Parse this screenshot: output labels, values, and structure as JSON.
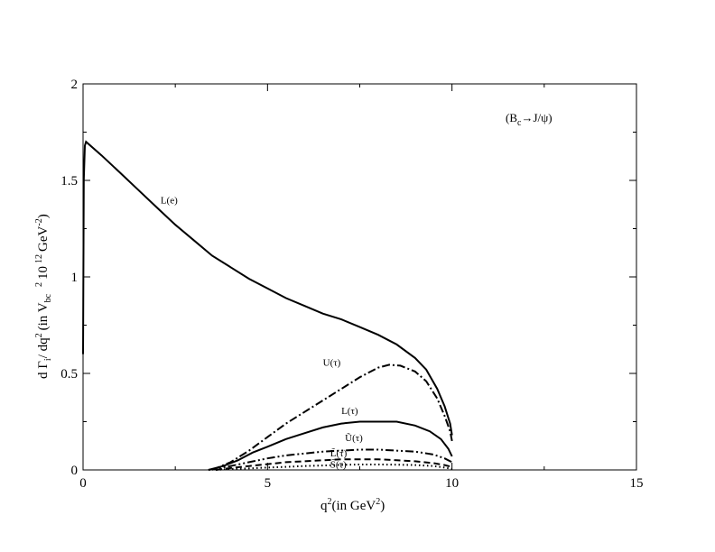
{
  "chart_data": {
    "type": "line",
    "title": "",
    "annotation": "(B_c→J/ψ)",
    "annotation_parts": {
      "pre": "(B",
      "sub": "c",
      "post": "→J/ψ)"
    },
    "xlabel_parts": {
      "a": "q",
      "sup": "2",
      "b": "(in GeV",
      "sup2": "2",
      "c": ")"
    },
    "ylabel_parts": {
      "a": "d Γ",
      "s1": "i",
      "b": "/ dq",
      "p1": "2",
      "c": "(in V",
      "s2": "bc",
      "p2": "2",
      "d": "10",
      "p3": "12",
      "e": "GeV",
      "p4": "-2",
      "f": ")"
    },
    "xlim": [
      0,
      15
    ],
    "ylim": [
      0,
      2
    ],
    "xticks": [
      0,
      5,
      10,
      15
    ],
    "yticks": [
      0,
      0.5,
      1,
      1.5,
      2
    ],
    "ytick_labels": [
      "0",
      "0.5",
      "1",
      "1.5",
      "2"
    ],
    "grid": false,
    "series": [
      {
        "name": "L(e)",
        "style": "solid",
        "label_at": [
          2.1,
          1.38
        ],
        "x": [
          0.0,
          0.02,
          0.05,
          0.08,
          0.5,
          1,
          1.5,
          2,
          2.5,
          3,
          3.5,
          4,
          4.5,
          5,
          5.5,
          6,
          6.5,
          7,
          7.5,
          8,
          8.5,
          9,
          9.3,
          9.6,
          9.8,
          9.95,
          10.0
        ],
        "y": [
          0.6,
          1.5,
          1.68,
          1.7,
          1.63,
          1.54,
          1.45,
          1.36,
          1.27,
          1.19,
          1.11,
          1.05,
          0.99,
          0.94,
          0.89,
          0.85,
          0.81,
          0.78,
          0.74,
          0.7,
          0.65,
          0.58,
          0.52,
          0.42,
          0.33,
          0.24,
          0.18
        ]
      },
      {
        "name": "U(τ)",
        "style": "dashdot",
        "label_at": [
          6.5,
          0.54
        ],
        "x": [
          3.5,
          4,
          4.5,
          5,
          5.5,
          6,
          6.5,
          7,
          7.5,
          8,
          8.3,
          8.6,
          9,
          9.3,
          9.6,
          9.8,
          9.95,
          10.0
        ],
        "y": [
          0.0,
          0.04,
          0.1,
          0.17,
          0.24,
          0.3,
          0.36,
          0.42,
          0.48,
          0.53,
          0.545,
          0.54,
          0.51,
          0.46,
          0.37,
          0.28,
          0.2,
          0.15
        ]
      },
      {
        "name": "L(τ)",
        "style": "solid",
        "label_at": [
          7.0,
          0.29
        ],
        "x": [
          3.4,
          3.8,
          4.2,
          4.6,
          5,
          5.5,
          6,
          6.5,
          7,
          7.5,
          8,
          8.5,
          9,
          9.4,
          9.7,
          9.9,
          10.0
        ],
        "y": [
          0.0,
          0.02,
          0.05,
          0.09,
          0.12,
          0.16,
          0.19,
          0.22,
          0.24,
          0.25,
          0.25,
          0.25,
          0.23,
          0.2,
          0.16,
          0.11,
          0.07
        ]
      },
      {
        "name": "Ũ(τ)",
        "style": "dashdotdot",
        "label_at": [
          7.1,
          0.15
        ],
        "x": [
          3.4,
          4,
          4.5,
          5,
          5.5,
          6,
          6.5,
          7,
          7.5,
          8,
          8.5,
          9,
          9.5,
          9.8,
          10.0
        ],
        "y": [
          0.0,
          0.02,
          0.04,
          0.06,
          0.075,
          0.085,
          0.095,
          0.1,
          0.105,
          0.105,
          0.1,
          0.095,
          0.08,
          0.06,
          0.04
        ]
      },
      {
        "name": "L̃(τ)",
        "style": "dashed",
        "label_at": [
          6.7,
          0.07
        ],
        "x": [
          3.6,
          4,
          4.5,
          5,
          5.5,
          6,
          6.5,
          7,
          7.5,
          8,
          8.5,
          9,
          9.5,
          9.8,
          10.0
        ],
        "y": [
          0.0,
          0.01,
          0.02,
          0.03,
          0.04,
          0.045,
          0.05,
          0.055,
          0.055,
          0.055,
          0.05,
          0.045,
          0.035,
          0.025,
          0.015
        ]
      },
      {
        "name": "S̃(τ)",
        "style": "dotted",
        "label_at": [
          6.7,
          0.012
        ],
        "x": [
          3.6,
          4,
          4.5,
          5,
          5.5,
          6,
          6.5,
          7,
          7.5,
          8,
          8.5,
          9,
          9.5,
          9.8,
          10.0
        ],
        "y": [
          0.0,
          0.005,
          0.008,
          0.012,
          0.016,
          0.02,
          0.023,
          0.026,
          0.028,
          0.028,
          0.027,
          0.025,
          0.02,
          0.012,
          0.005
        ]
      }
    ]
  }
}
